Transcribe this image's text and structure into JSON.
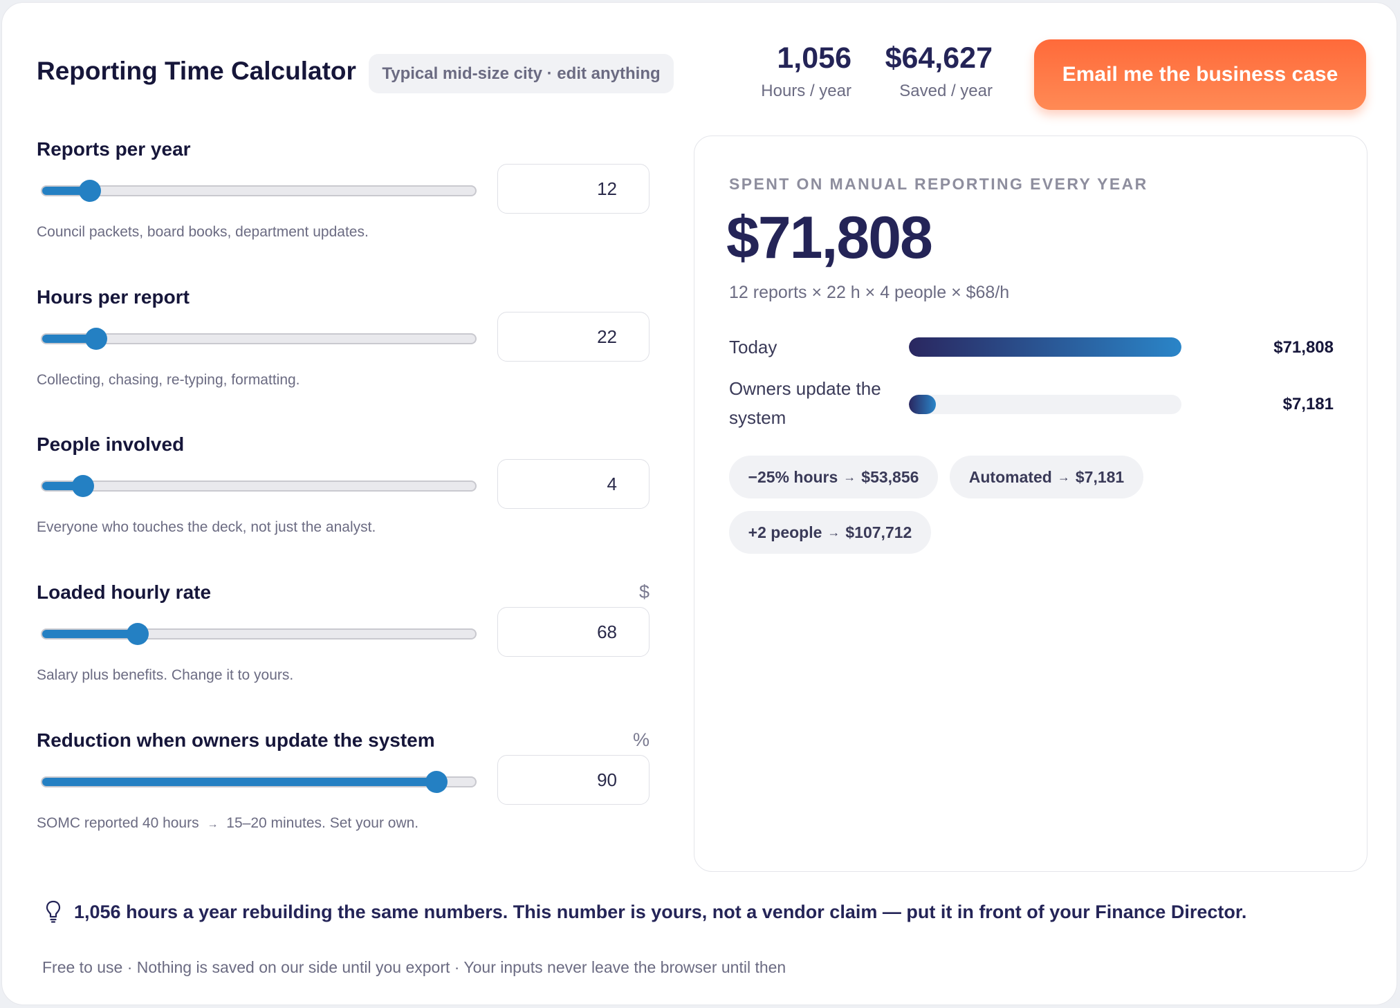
{
  "header": {
    "title": "Reporting Time Calculator",
    "hint": "Typical mid-size city · edit anything",
    "stats": [
      {
        "value": "1,056",
        "label": "Hours / year"
      },
      {
        "value": "$64,627",
        "label": "Saved / year"
      }
    ],
    "cta_label": "Email me the business case"
  },
  "inputs": [
    {
      "label": "Reports per year",
      "unit": "",
      "value": "12",
      "slider_fraction": 0.11,
      "help": "Council packets, board books, department updates."
    },
    {
      "label": "Hours per report",
      "unit": "",
      "value": "22",
      "slider_fraction": 0.125,
      "help": "Collecting, chasing, re-typing, formatting."
    },
    {
      "label": "People involved",
      "unit": "",
      "value": "4",
      "slider_fraction": 0.095,
      "help": "Everyone who touches the deck, not just the analyst."
    },
    {
      "label": "Loaded hourly rate",
      "unit": "$",
      "value": "68",
      "slider_fraction": 0.22,
      "help": "Salary plus benefits. Change it to yours."
    },
    {
      "label": "Reduction when owners update the system",
      "unit": "%",
      "value": "90",
      "slider_fraction": 0.91,
      "help_before": "SOMC reported 40 hours",
      "help_arrow": "→",
      "help_after": "15–20 minutes. Set your own."
    }
  ],
  "result": {
    "eyebrow": "SPENT ON MANUAL REPORTING EVERY YEAR",
    "total": "$71,808",
    "formula": "12 reports × 22 h × 4 people × $68/h",
    "bars": [
      {
        "label": "Today",
        "value": "$71,808",
        "fraction": 1.0
      },
      {
        "label": "Owners update the system",
        "value": "$7,181",
        "fraction": 0.1
      }
    ],
    "scenarios": [
      {
        "label": "−25% hours",
        "arrow": "→",
        "value": "$53,856"
      },
      {
        "label": "Automated",
        "arrow": "→",
        "value": "$7,181"
      },
      {
        "label": "+2 people",
        "arrow": "→",
        "value": "$107,712"
      }
    ]
  },
  "insight": "1,056 hours a year rebuilding the same numbers. This number is yours, not a vendor claim — put it in front of your Finance Director.",
  "footnote": "Free to use · Nothing is saved on our side until you export · Your inputs never leave the browser until then",
  "colors": {
    "accent": "#2480c3",
    "cta": "#ff6a3a",
    "ink": "#242457"
  }
}
